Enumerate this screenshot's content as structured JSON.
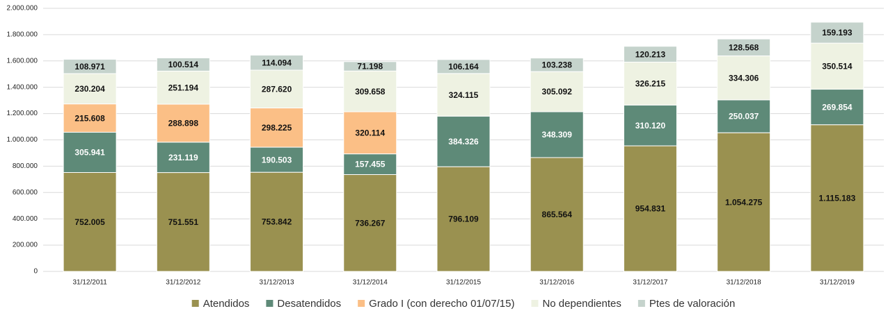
{
  "chart_data": {
    "type": "stacked_bar",
    "categories": [
      "31/12/2011",
      "31/12/2012",
      "31/12/2013",
      "31/12/2014",
      "31/12/2015",
      "31/12/2016",
      "31/12/2017",
      "31/12/2018",
      "31/12/2019"
    ],
    "series": [
      {
        "name": "Atendidos",
        "color": "#9a9150",
        "values": [
          752005,
          751551,
          753842,
          736267,
          796109,
          865564,
          954831,
          1054275,
          1115183
        ],
        "value_labels": [
          "752.005",
          "751.551",
          "753.842",
          "736.267",
          "796.109",
          "865.564",
          "954.831",
          "1.054.275",
          "1.115.183"
        ]
      },
      {
        "name": "Desatendidos",
        "color": "#5e8a78",
        "values": [
          305941,
          231119,
          190503,
          157455,
          384326,
          348309,
          310120,
          250037,
          269854
        ],
        "value_labels": [
          "305.941",
          "231.119",
          "190.503",
          "157.455",
          "384.326",
          "348.309",
          "310.120",
          "250.037",
          "269.854"
        ]
      },
      {
        "name": "Grado I (con derecho 01/07/15)",
        "color": "#fbbf86",
        "values": [
          215608,
          288898,
          298225,
          320114,
          null,
          null,
          null,
          null,
          null
        ],
        "value_labels": [
          "215.608",
          "288.898",
          "298.225",
          "320.114",
          null,
          null,
          null,
          null,
          null
        ]
      },
      {
        "name": "No dependientes",
        "color": "#eef2e2",
        "values": [
          230204,
          251194,
          287620,
          309658,
          324115,
          305092,
          326215,
          334306,
          350514
        ],
        "value_labels": [
          "230.204",
          "251.194",
          "287.620",
          "309.658",
          "324.115",
          "305.092",
          "326.215",
          "334.306",
          "350.514"
        ]
      },
      {
        "name": "Ptes de valoración",
        "color": "#c5d3cc",
        "values": [
          108971,
          100514,
          114094,
          71198,
          106164,
          103238,
          120213,
          128568,
          159193
        ],
        "value_labels": [
          "108.971",
          "100.514",
          "114.094",
          "71.198",
          "106.164",
          "103.238",
          "120.213",
          "128.568",
          "159.193"
        ]
      }
    ],
    "ylim": [
      0,
      2000000
    ],
    "yticks": [
      0,
      {
        "value": 200000,
        "label": "200.000"
      },
      {
        "value": 400000,
        "label": "400.000"
      },
      {
        "value": 600000,
        "label": "600.000"
      },
      {
        "value": 800000,
        "label": "800.000"
      },
      {
        "value": 1000000,
        "label": "1.000.000"
      },
      {
        "value": 1200000,
        "label": "1.200.000"
      },
      {
        "value": 1400000,
        "label": "1.400.000"
      },
      {
        "value": 1600000,
        "label": "1.600.000"
      },
      {
        "value": 1800000,
        "label": "1.800.000"
      },
      {
        "value": 2000000,
        "label": "2.000.000"
      }
    ],
    "grid": true,
    "legend": "bottom"
  }
}
